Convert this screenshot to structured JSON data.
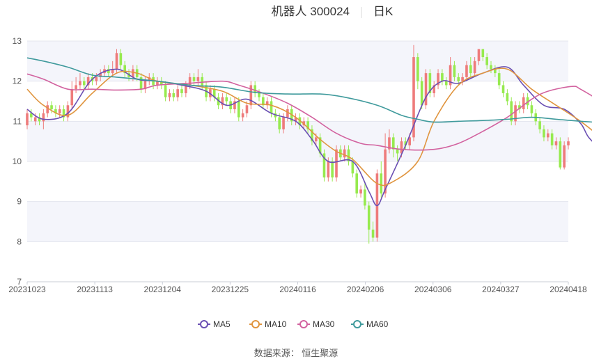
{
  "header": {
    "title": "机器人 300024",
    "period": "日K"
  },
  "source": {
    "text": "数据来源：  恒生聚源"
  },
  "colors": {
    "up": "#ee7b7b",
    "down": "#96ea4e",
    "ma5": "#6a4fb3",
    "ma10": "#e0953f",
    "ma30": "#d2629f",
    "ma60": "#3f9a9c",
    "band": "#f4f5fb",
    "grid": "#e3e5ee",
    "axis": "#c9ccd6"
  },
  "chart_data": {
    "type": "candlestick",
    "ylim": [
      7,
      13
    ],
    "yticks": [
      7,
      8,
      9,
      10,
      11,
      12,
      13
    ],
    "x_ticks": [
      "20231023",
      "20231113",
      "20231204",
      "20231225",
      "20240116",
      "20240206",
      "20240306",
      "20240327",
      "20240418"
    ],
    "series_names": [
      "MA5",
      "MA10",
      "MA30",
      "MA60"
    ],
    "candles": [
      [
        10.9,
        11.2,
        11.3,
        10.8
      ],
      [
        11.2,
        11.1,
        11.3,
        11.0
      ],
      [
        11.0,
        11.1,
        11.2,
        10.9
      ],
      [
        11.1,
        11.0,
        11.2,
        10.9
      ],
      [
        11.0,
        11.2,
        11.3,
        10.8
      ],
      [
        11.2,
        11.4,
        11.5,
        11.1
      ],
      [
        11.4,
        11.3,
        11.5,
        11.2
      ],
      [
        11.3,
        11.2,
        11.4,
        11.1
      ],
      [
        11.2,
        11.3,
        11.4,
        11.1
      ],
      [
        11.3,
        11.1,
        11.4,
        11.0
      ],
      [
        11.1,
        11.4,
        11.5,
        11.0
      ],
      [
        11.4,
        11.8,
        12.0,
        11.3
      ],
      [
        11.8,
        11.9,
        12.1,
        11.7
      ],
      [
        11.9,
        12.0,
        12.2,
        11.8
      ],
      [
        12.0,
        11.9,
        12.1,
        11.8
      ],
      [
        11.9,
        12.1,
        12.2,
        11.8
      ],
      [
        12.1,
        12.0,
        12.2,
        11.9
      ],
      [
        12.0,
        12.1,
        12.2,
        11.9
      ],
      [
        12.1,
        12.2,
        12.3,
        12.0
      ],
      [
        12.2,
        12.3,
        12.4,
        12.1
      ],
      [
        12.3,
        12.2,
        12.4,
        12.1
      ],
      [
        12.2,
        12.3,
        12.5,
        12.1
      ],
      [
        12.3,
        12.7,
        12.8,
        12.2
      ],
      [
        12.7,
        12.4,
        12.8,
        12.3
      ],
      [
        12.4,
        12.2,
        12.5,
        12.1
      ],
      [
        12.2,
        12.1,
        12.3,
        12.0
      ],
      [
        12.1,
        12.3,
        12.4,
        12.0
      ],
      [
        12.3,
        12.1,
        12.4,
        12.0
      ],
      [
        12.1,
        11.8,
        12.2,
        11.7
      ],
      [
        11.8,
        12.0,
        12.1,
        11.7
      ],
      [
        12.0,
        12.1,
        12.2,
        11.9
      ],
      [
        12.1,
        11.9,
        12.2,
        11.8
      ],
      [
        11.9,
        12.0,
        12.1,
        11.8
      ],
      [
        12.0,
        11.9,
        12.1,
        11.8
      ],
      [
        11.9,
        11.6,
        12.0,
        11.5
      ],
      [
        11.6,
        11.7,
        11.8,
        11.5
      ],
      [
        11.7,
        11.6,
        11.8,
        11.5
      ],
      [
        11.6,
        11.8,
        11.9,
        11.5
      ],
      [
        11.8,
        11.7,
        11.9,
        11.6
      ],
      [
        11.7,
        11.9,
        12.0,
        11.6
      ],
      [
        11.9,
        12.1,
        12.2,
        11.8
      ],
      [
        12.1,
        12.0,
        12.2,
        11.9
      ],
      [
        12.0,
        12.1,
        12.3,
        11.9
      ],
      [
        12.1,
        11.9,
        12.2,
        11.8
      ],
      [
        11.9,
        11.6,
        12.0,
        11.5
      ],
      [
        11.6,
        11.8,
        11.9,
        11.5
      ],
      [
        11.8,
        11.6,
        11.9,
        11.5
      ],
      [
        11.6,
        11.4,
        11.7,
        11.3
      ],
      [
        11.4,
        11.6,
        11.7,
        11.3
      ],
      [
        11.6,
        11.5,
        11.7,
        11.4
      ],
      [
        11.5,
        11.3,
        11.6,
        11.2
      ],
      [
        11.3,
        11.5,
        11.6,
        11.2
      ],
      [
        11.5,
        11.1,
        11.6,
        11.0
      ],
      [
        11.1,
        11.2,
        11.3,
        11.0
      ],
      [
        11.2,
        11.4,
        11.5,
        11.1
      ],
      [
        11.4,
        11.9,
        12.0,
        11.3
      ],
      [
        11.9,
        11.7,
        12.0,
        11.6
      ],
      [
        11.7,
        11.6,
        11.8,
        11.5
      ],
      [
        11.6,
        11.4,
        11.7,
        11.3
      ],
      [
        11.4,
        11.5,
        11.6,
        11.3
      ],
      [
        11.5,
        11.2,
        11.6,
        11.1
      ],
      [
        11.2,
        11.1,
        11.3,
        11.0
      ],
      [
        11.1,
        10.8,
        11.2,
        10.7
      ],
      [
        10.8,
        11.1,
        11.2,
        10.7
      ],
      [
        11.1,
        11.3,
        11.4,
        11.0
      ],
      [
        11.3,
        11.0,
        11.4,
        10.9
      ],
      [
        11.0,
        11.1,
        11.2,
        10.9
      ],
      [
        11.1,
        10.9,
        11.2,
        10.8
      ],
      [
        10.9,
        11.0,
        11.1,
        10.8
      ],
      [
        11.0,
        10.8,
        11.1,
        10.7
      ],
      [
        10.8,
        10.5,
        10.9,
        10.4
      ],
      [
        10.5,
        10.6,
        10.7,
        10.4
      ],
      [
        10.6,
        10.2,
        10.7,
        10.1
      ],
      [
        10.2,
        9.6,
        10.3,
        9.5
      ],
      [
        9.6,
        10.0,
        10.1,
        9.5
      ],
      [
        10.0,
        9.6,
        10.1,
        9.5
      ],
      [
        9.6,
        10.3,
        10.4,
        9.5
      ],
      [
        10.3,
        10.1,
        10.4,
        10.0
      ],
      [
        10.1,
        10.3,
        10.4,
        10.0
      ],
      [
        10.3,
        10.0,
        10.4,
        9.9
      ],
      [
        10.0,
        9.7,
        10.1,
        9.6
      ],
      [
        9.7,
        9.2,
        9.8,
        9.1
      ],
      [
        9.2,
        9.3,
        9.4,
        9.1
      ],
      [
        9.3,
        8.9,
        9.5,
        8.8
      ],
      [
        8.9,
        8.3,
        9.0,
        7.95
      ],
      [
        8.3,
        8.1,
        8.5,
        8.0
      ],
      [
        8.1,
        9.7,
        9.8,
        8.0
      ],
      [
        9.7,
        9.2,
        10.0,
        9.1
      ],
      [
        9.2,
        10.3,
        10.7,
        9.1
      ],
      [
        10.3,
        10.6,
        10.8,
        10.2
      ],
      [
        10.6,
        10.3,
        10.7,
        10.1
      ],
      [
        10.3,
        10.2,
        10.4,
        10.0
      ],
      [
        10.2,
        10.5,
        10.6,
        10.1
      ],
      [
        10.5,
        10.4,
        10.6,
        10.3
      ],
      [
        10.4,
        10.6,
        10.7,
        10.3
      ],
      [
        10.6,
        12.6,
        12.9,
        10.5
      ],
      [
        12.6,
        12.0,
        12.7,
        11.8
      ],
      [
        12.0,
        11.4,
        12.1,
        11.3
      ],
      [
        11.4,
        12.2,
        12.3,
        11.3
      ],
      [
        12.2,
        11.7,
        12.3,
        11.6
      ],
      [
        11.7,
        11.9,
        12.0,
        11.6
      ],
      [
        11.9,
        12.2,
        12.3,
        11.8
      ],
      [
        12.2,
        12.0,
        12.3,
        11.9
      ],
      [
        12.0,
        11.9,
        12.1,
        11.8
      ],
      [
        11.9,
        12.4,
        12.6,
        11.8
      ],
      [
        12.4,
        12.1,
        12.5,
        12.0
      ],
      [
        12.1,
        12.0,
        12.2,
        11.9
      ],
      [
        12.0,
        12.1,
        12.2,
        11.9
      ],
      [
        12.1,
        12.4,
        12.5,
        12.0
      ],
      [
        12.4,
        12.2,
        12.6,
        12.1
      ],
      [
        12.2,
        12.5,
        12.6,
        12.1
      ],
      [
        12.5,
        12.8,
        12.8,
        12.4
      ],
      [
        12.8,
        12.6,
        12.8,
        12.5
      ],
      [
        12.6,
        12.4,
        12.7,
        12.3
      ],
      [
        12.4,
        12.3,
        12.5,
        12.2
      ],
      [
        12.3,
        12.2,
        12.4,
        12.1
      ],
      [
        12.2,
        11.9,
        12.3,
        11.8
      ],
      [
        11.9,
        11.7,
        12.0,
        11.6
      ],
      [
        11.7,
        11.5,
        11.8,
        11.4
      ],
      [
        11.5,
        11.0,
        11.6,
        10.9
      ],
      [
        11.0,
        11.4,
        11.5,
        10.9
      ],
      [
        11.4,
        11.3,
        11.5,
        11.2
      ],
      [
        11.3,
        11.6,
        11.7,
        11.2
      ],
      [
        11.6,
        11.4,
        11.7,
        11.3
      ],
      [
        11.4,
        11.2,
        11.5,
        11.1
      ],
      [
        11.2,
        11.0,
        11.3,
        10.9
      ],
      [
        11.0,
        10.8,
        11.1,
        10.7
      ],
      [
        10.8,
        10.6,
        10.9,
        10.5
      ],
      [
        10.6,
        10.7,
        10.8,
        10.5
      ],
      [
        10.7,
        10.4,
        10.8,
        10.3
      ],
      [
        10.4,
        10.5,
        10.6,
        10.3
      ],
      [
        10.5,
        9.85,
        10.6,
        9.8
      ],
      [
        9.85,
        10.4,
        10.5,
        9.8
      ],
      [
        10.4,
        10.5,
        10.6,
        10.3
      ]
    ],
    "ma5": [
      [
        0,
        11.3
      ],
      [
        4,
        11.05
      ],
      [
        10,
        11.2
      ],
      [
        16,
        12.05
      ],
      [
        22,
        12.3
      ],
      [
        27,
        12.05
      ],
      [
        32,
        12.0
      ],
      [
        38,
        11.9
      ],
      [
        44,
        11.75
      ],
      [
        49,
        11.4
      ],
      [
        54,
        11.55
      ],
      [
        60,
        11.2
      ],
      [
        66,
        11.0
      ],
      [
        70,
        10.55
      ],
      [
        74,
        10.0
      ],
      [
        80,
        10.0
      ],
      [
        84,
        9.25
      ],
      [
        86,
        8.9
      ],
      [
        88,
        9.3
      ],
      [
        93,
        10.4
      ],
      [
        98,
        11.6
      ],
      [
        102,
        12.0
      ],
      [
        106,
        11.95
      ],
      [
        112,
        12.2
      ],
      [
        118,
        12.35
      ],
      [
        122,
        11.9
      ],
      [
        127,
        11.4
      ],
      [
        132,
        11.3
      ],
      [
        136,
        10.95
      ],
      [
        138,
        10.6
      ],
      [
        141,
        10.3
      ]
    ],
    "ma10": [
      [
        0,
        11.8
      ],
      [
        4,
        11.4
      ],
      [
        10,
        11.15
      ],
      [
        16,
        11.7
      ],
      [
        22,
        12.2
      ],
      [
        27,
        12.2
      ],
      [
        32,
        12.0
      ],
      [
        40,
        11.9
      ],
      [
        48,
        11.75
      ],
      [
        54,
        11.45
      ],
      [
        60,
        11.4
      ],
      [
        66,
        11.1
      ],
      [
        72,
        10.55
      ],
      [
        76,
        10.25
      ],
      [
        80,
        10.05
      ],
      [
        86,
        9.45
      ],
      [
        90,
        9.5
      ],
      [
        96,
        10.0
      ],
      [
        100,
        11.0
      ],
      [
        106,
        11.9
      ],
      [
        112,
        12.2
      ],
      [
        118,
        12.3
      ],
      [
        124,
        11.8
      ],
      [
        130,
        11.4
      ],
      [
        136,
        11.0
      ],
      [
        141,
        10.6
      ]
    ],
    "ma30": [
      [
        0,
        12.18
      ],
      [
        4,
        12.05
      ],
      [
        10,
        11.8
      ],
      [
        16,
        11.8
      ],
      [
        22,
        11.78
      ],
      [
        28,
        11.8
      ],
      [
        32,
        11.9
      ],
      [
        40,
        11.95
      ],
      [
        48,
        12.0
      ],
      [
        52,
        11.9
      ],
      [
        58,
        11.7
      ],
      [
        64,
        11.45
      ],
      [
        70,
        11.1
      ],
      [
        76,
        10.7
      ],
      [
        82,
        10.45
      ],
      [
        86,
        10.4
      ],
      [
        92,
        10.3
      ],
      [
        100,
        10.3
      ],
      [
        106,
        10.45
      ],
      [
        112,
        10.75
      ],
      [
        118,
        11.1
      ],
      [
        124,
        11.55
      ],
      [
        128,
        11.75
      ],
      [
        134,
        11.87
      ],
      [
        136,
        11.8
      ],
      [
        141,
        11.5
      ]
    ],
    "ma60": [
      [
        0,
        12.58
      ],
      [
        4,
        12.5
      ],
      [
        10,
        12.35
      ],
      [
        16,
        12.15
      ],
      [
        22,
        12.1
      ],
      [
        32,
        12.0
      ],
      [
        40,
        11.9
      ],
      [
        48,
        11.85
      ],
      [
        56,
        11.72
      ],
      [
        64,
        11.68
      ],
      [
        72,
        11.68
      ],
      [
        78,
        11.6
      ],
      [
        86,
        11.4
      ],
      [
        92,
        11.15
      ],
      [
        96,
        11.05
      ],
      [
        100,
        10.98
      ],
      [
        106,
        11.0
      ],
      [
        112,
        11.02
      ],
      [
        118,
        11.05
      ],
      [
        124,
        11.1
      ],
      [
        130,
        11.05
      ],
      [
        136,
        11.0
      ],
      [
        141,
        10.97
      ]
    ]
  }
}
